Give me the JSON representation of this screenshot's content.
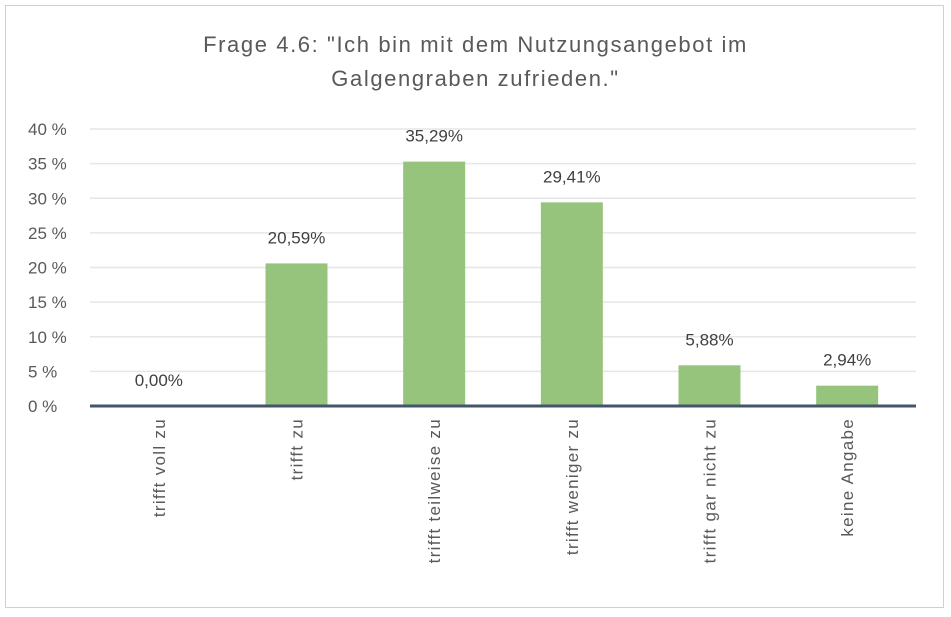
{
  "chart_data": {
    "type": "bar",
    "title_lines": [
      "Frage 4.6: \"Ich bin mit dem Nutzungsangebot im",
      "Galgengraben zufrieden.\""
    ],
    "categories": [
      "trifft voll zu",
      "trifft zu",
      "trifft teilweise zu",
      "trifft weniger zu",
      "trifft gar nicht zu",
      "keine Angabe"
    ],
    "values": [
      0.0,
      20.59,
      35.29,
      29.41,
      5.88,
      2.94
    ],
    "data_labels": [
      "0,00%",
      "20,59%",
      "35,29%",
      "29,41%",
      "5,88%",
      "2,94%"
    ],
    "yticks": [
      0,
      5,
      10,
      15,
      20,
      25,
      30,
      35,
      40
    ],
    "ytick_labels": [
      "0 %",
      "5 %",
      "10 %",
      "15 %",
      "20 %",
      "25 %",
      "30 %",
      "35 %",
      "40 %"
    ],
    "ylim": [
      0,
      40
    ],
    "xlabel": "",
    "ylabel": "",
    "grid": true,
    "legend": "none",
    "bar_color": "#97c47c",
    "axis_color": "#44546a",
    "grid_color": "#e6e6e6"
  }
}
